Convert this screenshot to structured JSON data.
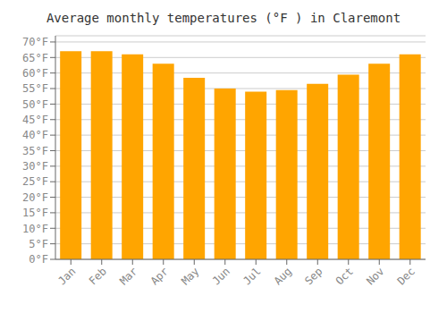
{
  "chart_data": {
    "type": "bar",
    "title": "Average monthly temperatures (°F ) in Claremont",
    "categories": [
      "Jan",
      "Feb",
      "Mar",
      "Apr",
      "May",
      "Jun",
      "Jul",
      "Aug",
      "Sep",
      "Oct",
      "Nov",
      "Dec"
    ],
    "values": [
      67,
      67,
      66,
      63,
      58.5,
      55,
      54,
      54.5,
      56.5,
      59.5,
      63,
      66
    ],
    "color": "#FFA500",
    "ylim": [
      0,
      72
    ],
    "yticks": [
      {
        "value": 0,
        "label": "0°F"
      },
      {
        "value": 5,
        "label": "5°F"
      },
      {
        "value": 10,
        "label": "10°F"
      },
      {
        "value": 15,
        "label": "15°F"
      },
      {
        "value": 20,
        "label": "20°F"
      },
      {
        "value": 25,
        "label": "25°F"
      },
      {
        "value": 30,
        "label": "30°F"
      },
      {
        "value": 35,
        "label": "35°F"
      },
      {
        "value": 40,
        "label": "40°F"
      },
      {
        "value": 45,
        "label": "45°F"
      },
      {
        "value": 50,
        "label": "50°F"
      },
      {
        "value": 55,
        "label": "55°F"
      },
      {
        "value": 60,
        "label": "60°F"
      },
      {
        "value": 65,
        "label": "65°F"
      },
      {
        "value": 70,
        "label": "70°F"
      }
    ],
    "grid": true
  }
}
